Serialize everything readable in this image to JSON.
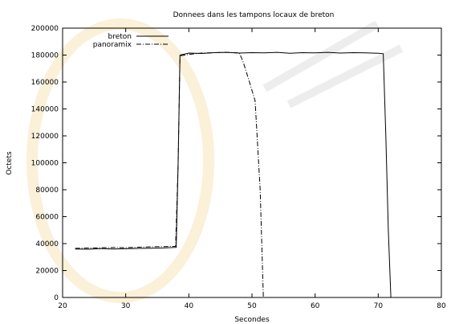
{
  "chart_data": {
    "type": "line",
    "title": "Donnees dans les tampons locaux de breton",
    "xlabel": "Secondes",
    "ylabel": "Octets",
    "xlim": [
      20,
      80
    ],
    "ylim": [
      0,
      200000
    ],
    "xticks": [
      20,
      30,
      40,
      50,
      60,
      70,
      80
    ],
    "yticks": [
      0,
      20000,
      40000,
      60000,
      80000,
      100000,
      120000,
      140000,
      160000,
      180000,
      200000
    ],
    "grid": false,
    "legend_position": "top-left",
    "series": [
      {
        "name": "breton",
        "style": "solid",
        "color": "#000000",
        "x": [
          22,
          24,
          26,
          28,
          30,
          32,
          34,
          36,
          38,
          38.3,
          38.6,
          40,
          42,
          44,
          46,
          48,
          50,
          52,
          54,
          56,
          58,
          60,
          62,
          64,
          66,
          68,
          70,
          70.8,
          71.2,
          71.6,
          72
        ],
        "y": [
          36000,
          35800,
          36300,
          36000,
          36200,
          36400,
          36600,
          36800,
          37200,
          100000,
          180000,
          181500,
          181200,
          181800,
          182000,
          181500,
          181800,
          181600,
          182000,
          181400,
          181800,
          181600,
          182000,
          181500,
          181800,
          181600,
          181400,
          181000,
          120000,
          50000,
          0
        ]
      },
      {
        "name": "panoramix",
        "style": "dashed",
        "color": "#000000",
        "x": [
          22,
          24,
          26,
          28,
          30,
          32,
          34,
          36,
          37.9,
          38.3,
          38.6,
          40,
          42,
          44,
          46,
          48,
          48.6,
          49.6,
          50.5,
          51.3,
          51.8
        ],
        "y": [
          36500,
          36700,
          36900,
          37100,
          37000,
          37300,
          37600,
          37800,
          38000,
          100000,
          179500,
          180500,
          181500,
          181800,
          182000,
          181600,
          175000,
          160000,
          146000,
          80000,
          0
        ]
      }
    ]
  }
}
